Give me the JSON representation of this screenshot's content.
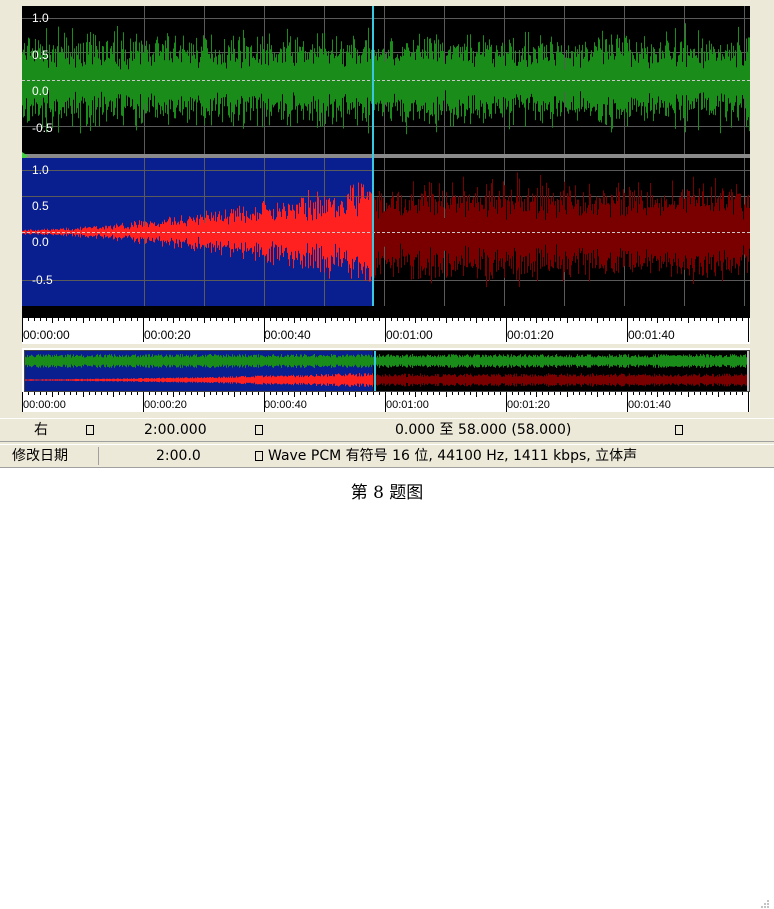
{
  "tracks": {
    "left": {
      "label": "",
      "y_ticks": [
        "1.0",
        "0.5",
        "0.0",
        "-0.5"
      ],
      "wave_color": "#1a8c1a"
    },
    "right": {
      "y_ticks": [
        "1.0",
        "0.5",
        "0.0",
        "-0.5"
      ],
      "selected_wave_color": "#ff2020",
      "unselected_wave_color": "#7a0000",
      "selection_background": "#0a1f8f"
    }
  },
  "timeline": {
    "ticks": [
      "00:00:00",
      "00:00:20",
      "00:00:40",
      "00:01:00",
      "00:01:20",
      "00:01:40"
    ]
  },
  "overview_timeline": {
    "ticks": [
      "00:00:00",
      "00:00:20",
      "00:00:40",
      "00:01:00",
      "00:01:20",
      "00:01:40"
    ]
  },
  "status_row1": {
    "channel": "右",
    "length": "2:00.000",
    "selection": "0.000 至 58.000 (58.000)"
  },
  "status_row2": {
    "label": "修改日期",
    "value": "2:00.0",
    "format": "Wave PCM 有符号 16 位, 44100 Hz, 1411 kbps, 立体声"
  },
  "caption": "第 8 题图",
  "cursor_color": "#38c8e0"
}
